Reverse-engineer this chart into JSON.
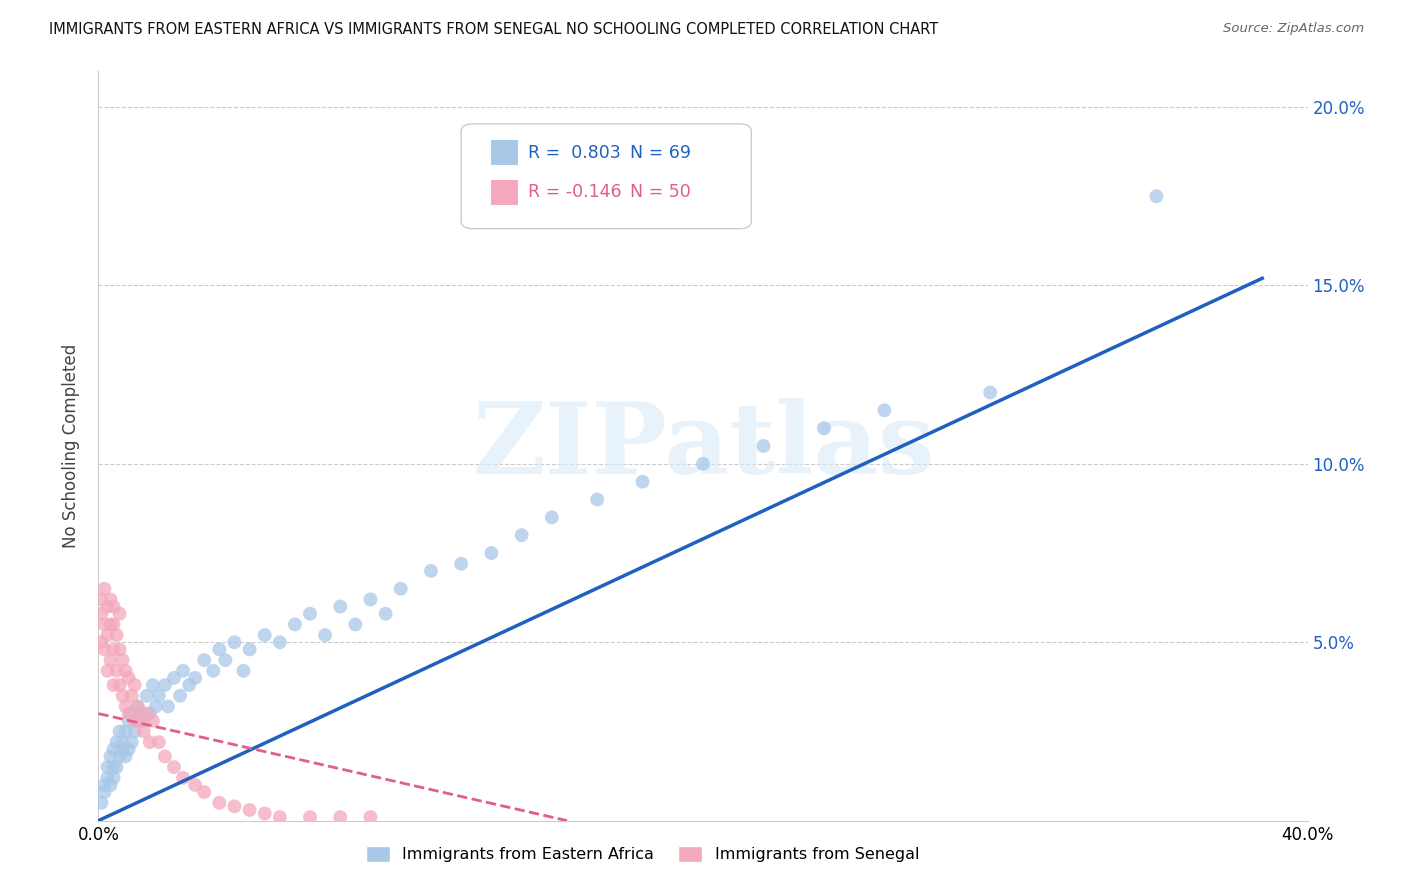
{
  "title": "IMMIGRANTS FROM EASTERN AFRICA VS IMMIGRANTS FROM SENEGAL NO SCHOOLING COMPLETED CORRELATION CHART",
  "source": "Source: ZipAtlas.com",
  "ylabel": "No Schooling Completed",
  "xlim": [
    0.0,
    0.4
  ],
  "ylim": [
    0.0,
    0.21
  ],
  "R_blue": 0.803,
  "N_blue": 69,
  "R_pink": -0.146,
  "N_pink": 50,
  "blue_color": "#a8c8e8",
  "pink_color": "#f4a8bc",
  "blue_line_color": "#2060c0",
  "pink_line_color": "#e06080",
  "legend1_label": "Immigrants from Eastern Africa",
  "legend2_label": "Immigrants from Senegal",
  "watermark_text": "ZIPatlas",
  "blue_x": [
    0.001,
    0.002,
    0.002,
    0.003,
    0.003,
    0.004,
    0.004,
    0.005,
    0.005,
    0.005,
    0.006,
    0.006,
    0.007,
    0.007,
    0.008,
    0.008,
    0.009,
    0.009,
    0.01,
    0.01,
    0.011,
    0.011,
    0.012,
    0.013,
    0.013,
    0.014,
    0.015,
    0.016,
    0.017,
    0.018,
    0.019,
    0.02,
    0.022,
    0.023,
    0.025,
    0.027,
    0.028,
    0.03,
    0.032,
    0.035,
    0.038,
    0.04,
    0.042,
    0.045,
    0.048,
    0.05,
    0.055,
    0.06,
    0.065,
    0.07,
    0.075,
    0.08,
    0.085,
    0.09,
    0.095,
    0.1,
    0.11,
    0.12,
    0.13,
    0.14,
    0.15,
    0.165,
    0.18,
    0.2,
    0.22,
    0.24,
    0.26,
    0.295,
    0.35
  ],
  "blue_y": [
    0.005,
    0.008,
    0.01,
    0.012,
    0.015,
    0.01,
    0.018,
    0.012,
    0.015,
    0.02,
    0.015,
    0.022,
    0.018,
    0.025,
    0.02,
    0.022,
    0.018,
    0.025,
    0.02,
    0.028,
    0.022,
    0.03,
    0.025,
    0.028,
    0.032,
    0.03,
    0.028,
    0.035,
    0.03,
    0.038,
    0.032,
    0.035,
    0.038,
    0.032,
    0.04,
    0.035,
    0.042,
    0.038,
    0.04,
    0.045,
    0.042,
    0.048,
    0.045,
    0.05,
    0.042,
    0.048,
    0.052,
    0.05,
    0.055,
    0.058,
    0.052,
    0.06,
    0.055,
    0.062,
    0.058,
    0.065,
    0.07,
    0.072,
    0.075,
    0.08,
    0.085,
    0.09,
    0.095,
    0.1,
    0.105,
    0.11,
    0.115,
    0.12,
    0.175
  ],
  "pink_x": [
    0.001,
    0.001,
    0.001,
    0.002,
    0.002,
    0.002,
    0.003,
    0.003,
    0.003,
    0.004,
    0.004,
    0.004,
    0.005,
    0.005,
    0.005,
    0.005,
    0.006,
    0.006,
    0.007,
    0.007,
    0.007,
    0.008,
    0.008,
    0.009,
    0.009,
    0.01,
    0.01,
    0.011,
    0.012,
    0.012,
    0.013,
    0.014,
    0.015,
    0.016,
    0.017,
    0.018,
    0.02,
    0.022,
    0.025,
    0.028,
    0.032,
    0.035,
    0.04,
    0.045,
    0.05,
    0.055,
    0.06,
    0.07,
    0.08,
    0.09
  ],
  "pink_y": [
    0.05,
    0.058,
    0.062,
    0.048,
    0.055,
    0.065,
    0.042,
    0.052,
    0.06,
    0.045,
    0.055,
    0.062,
    0.038,
    0.048,
    0.055,
    0.06,
    0.042,
    0.052,
    0.038,
    0.048,
    0.058,
    0.035,
    0.045,
    0.032,
    0.042,
    0.03,
    0.04,
    0.035,
    0.028,
    0.038,
    0.032,
    0.028,
    0.025,
    0.03,
    0.022,
    0.028,
    0.022,
    0.018,
    0.015,
    0.012,
    0.01,
    0.008,
    0.005,
    0.004,
    0.003,
    0.002,
    0.001,
    0.001,
    0.001,
    0.001
  ],
  "blue_line_x": [
    0.0,
    0.385
  ],
  "blue_line_y": [
    0.0,
    0.152
  ],
  "pink_line_x": [
    0.0,
    0.155
  ],
  "pink_line_y": [
    0.03,
    0.0
  ]
}
